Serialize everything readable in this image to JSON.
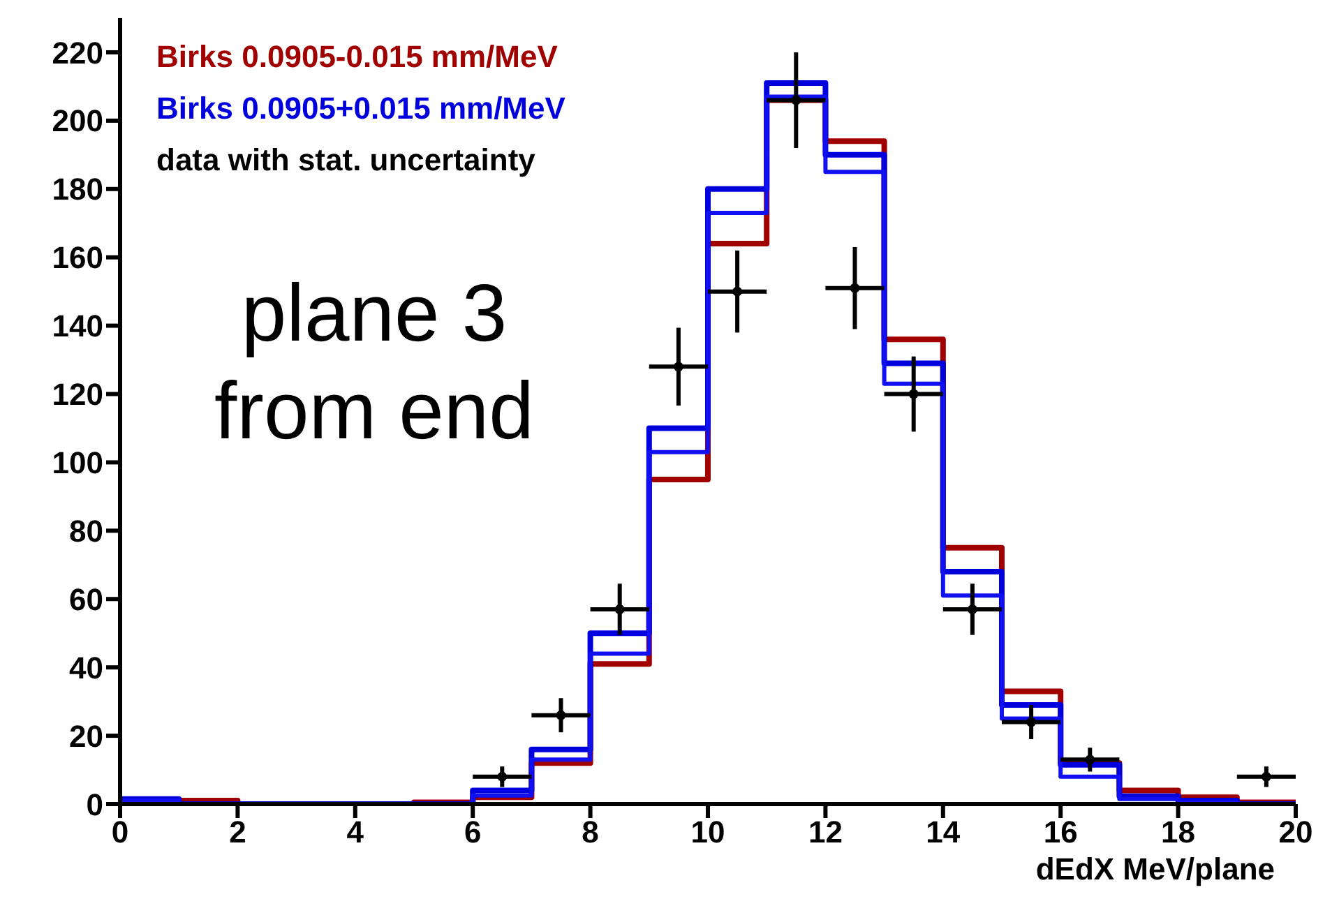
{
  "chart_data": {
    "type": "histogram",
    "xlabel": "dEdX MeV/plane",
    "bins": [
      0,
      1,
      2,
      3,
      4,
      5,
      6,
      7,
      8,
      9,
      10,
      11,
      12,
      13,
      14,
      15,
      16,
      17,
      18,
      19,
      20
    ],
    "series": [
      {
        "name": "Birks 0.0905-0.015 mm/MeV",
        "color": "#a00000",
        "values": [
          0.5,
          1,
          0,
          0,
          0,
          0.5,
          2,
          12,
          41,
          95,
          164,
          206,
          194,
          136,
          75,
          33,
          12,
          4,
          2,
          0.5
        ]
      },
      {
        "name": "Birks 0.0905+0.015 mm/MeV",
        "color": "#0000dd",
        "values": [
          1.5,
          0,
          0,
          0,
          0,
          0,
          4,
          16,
          50,
          110,
          180,
          211,
          190,
          129,
          68,
          29,
          11.5,
          2.3,
          1,
          0
        ]
      },
      {
        "color": "#1010f0",
        "values": [
          1,
          0,
          0,
          0,
          0,
          0,
          2.5,
          13,
          44,
          103,
          173,
          207,
          185,
          123,
          61,
          25,
          8,
          1.5,
          0.5,
          0
        ]
      },
      {
        "name": "data with stat. uncertainty",
        "type": "scatter",
        "color": "#000000",
        "x": [
          6.5,
          7.5,
          8.5,
          9.5,
          10.5,
          11.5,
          12.5,
          13.5,
          14.5,
          15.5,
          16.5,
          19.5
        ],
        "values": [
          8,
          26,
          57,
          128,
          150,
          206,
          151,
          120,
          57,
          24,
          13,
          8
        ],
        "errors": [
          3,
          5,
          7.5,
          11.4,
          12,
          14,
          12,
          11,
          7.5,
          5,
          3.5,
          3
        ],
        "xerrors": [
          0.5,
          0.5,
          0.5,
          0.5,
          0.5,
          0.5,
          0.5,
          0.5,
          0.5,
          0.5,
          0.5,
          0.5
        ]
      }
    ],
    "xlim": [
      0,
      20
    ],
    "xticks": [
      0,
      2,
      4,
      6,
      8,
      10,
      12,
      14,
      16,
      18,
      20
    ],
    "ylim": [
      0,
      230
    ],
    "yticks": [
      0,
      20,
      40,
      60,
      80,
      100,
      120,
      140,
      160,
      180,
      200,
      220
    ],
    "annotations": [
      "plane 3\nfrom end"
    ],
    "legend": "top left",
    "grid": false
  }
}
